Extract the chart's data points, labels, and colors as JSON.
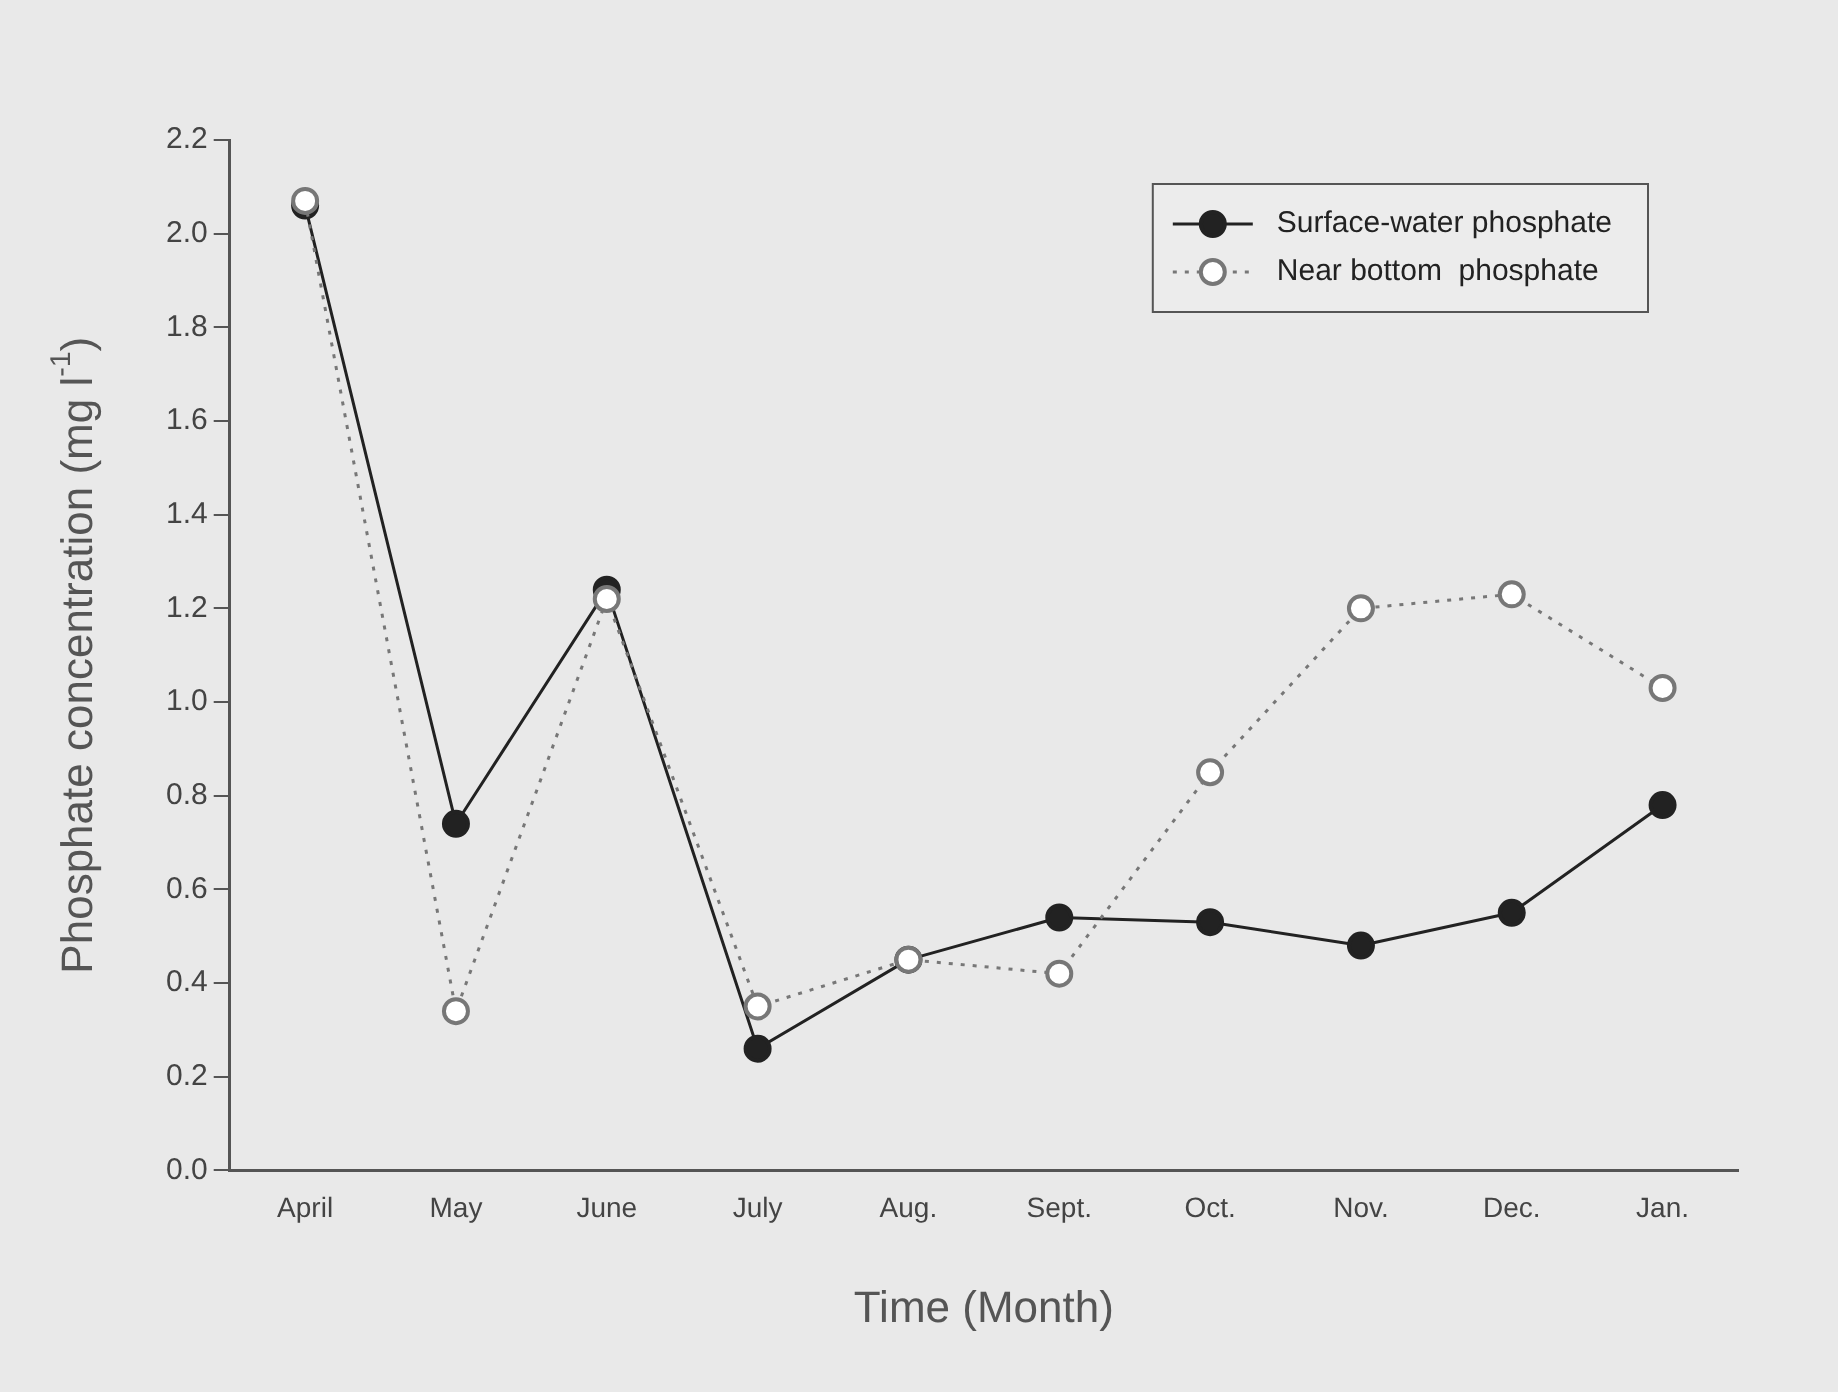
{
  "chart_data": {
    "type": "line",
    "xlabel": "Time (Month)",
    "ylabel": "Phosphate concentration (mg l$^{-1}$)",
    "categories": [
      "April",
      "May",
      "June",
      "July",
      "Aug.",
      "Sept.",
      "Oct.",
      "Nov.",
      "Dec.",
      "Jan."
    ],
    "series": [
      {
        "name": "Surface-water phosphate",
        "color": "#222222",
        "line_style": "solid",
        "values": [
          2.06,
          0.74,
          1.24,
          0.26,
          0.45,
          0.54,
          0.53,
          0.48,
          0.55,
          0.78
        ]
      },
      {
        "name": "Near bottom  phosphate",
        "color": "#777777",
        "line_style": "dotted",
        "values": [
          2.07,
          0.34,
          1.22,
          0.35,
          0.45,
          0.42,
          0.85,
          1.2,
          1.23,
          1.03
        ]
      }
    ],
    "ylim": [
      0,
      2.2
    ],
    "yticks": [
      {
        "value": 0,
        "label": "0.0"
      },
      {
        "value": 0.2,
        "label": "0.2"
      },
      {
        "value": 0.4,
        "label": "0.4"
      },
      {
        "value": 0.6,
        "label": "0.6"
      },
      {
        "value": 0.8,
        "label": "0.8"
      },
      {
        "value": 1,
        "label": "1.0"
      },
      {
        "value": 1.2,
        "label": "1.2"
      },
      {
        "value": 1.4,
        "label": "1.4"
      },
      {
        "value": 1.6,
        "label": "1.6"
      },
      {
        "value": 1.8,
        "label": "1.8"
      },
      {
        "value": 2,
        "label": "2.0"
      },
      {
        "value": 2.2,
        "label": "2.2"
      }
    ],
    "grid": false,
    "legend": "top right",
    "marker": "circle"
  }
}
